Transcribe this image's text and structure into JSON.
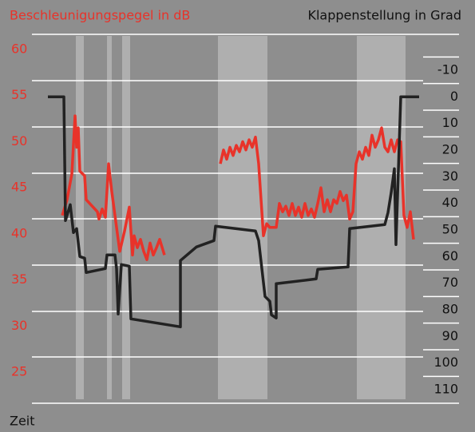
{
  "chart_data": {
    "type": "line",
    "title": "Beschleunigungspegel in dB",
    "y2_title": "Klappenstellung in Grad",
    "x_title": "Zeit",
    "xlim": [
      0,
      490
    ],
    "ylim": [
      25,
      60
    ],
    "yticks": [
      25,
      30,
      35,
      40,
      45,
      50,
      55,
      60
    ],
    "y2lim": [
      -10,
      110
    ],
    "y2ticks": [
      -10,
      0,
      10,
      20,
      30,
      40,
      50,
      60,
      70,
      80,
      90,
      100,
      110
    ],
    "series": [
      {
        "color": "#e8332a",
        "axis": "y",
        "x": [
          38,
          44,
          50,
          54,
          56,
          58,
          60,
          66,
          68,
          82,
          84,
          88,
          92,
          96,
          100,
          106,
          110,
          116,
          122,
          126,
          128,
          132,
          136,
          140,
          144,
          148,
          152,
          156,
          160,
          166,
          200,
          236,
          240,
          244,
          248,
          252,
          256,
          260,
          264,
          268,
          272,
          276,
          280,
          284,
          290,
          294,
          298,
          306,
          310,
          314,
          318,
          322,
          326,
          330,
          334,
          338,
          342,
          346,
          350,
          354,
          358,
          362,
          366,
          370,
          374,
          378,
          382,
          386,
          390,
          394,
          398,
          402,
          406,
          410,
          414,
          418,
          422,
          426,
          430,
          434,
          438,
          442,
          446,
          450,
          454,
          458,
          462,
          466,
          470,
          474,
          478
        ],
        "values": [
          42.0,
          43.7,
          46.5,
          52.8,
          49.4,
          51.5,
          46.8,
          46.3,
          43.7,
          42.4,
          41.6,
          42.7,
          41.8,
          47.6,
          44.6,
          40.7,
          38.1,
          40.3,
          42.9,
          37.7,
          39.8,
          38.5,
          39.4,
          38.1,
          37.2,
          39.0,
          37.7,
          38.5,
          39.4,
          37.7,
          null,
          47.6,
          49.1,
          48.1,
          49.4,
          48.5,
          49.6,
          48.9,
          50.0,
          49.1,
          50.2,
          49.4,
          50.5,
          47.6,
          39.8,
          41.1,
          40.7,
          40.7,
          43.3,
          42.4,
          43.0,
          42.0,
          43.3,
          42.0,
          42.9,
          41.8,
          43.3,
          42.0,
          42.7,
          41.8,
          43.3,
          45.0,
          42.4,
          43.7,
          42.4,
          43.7,
          43.3,
          44.6,
          43.6,
          44.2,
          41.6,
          42.4,
          47.6,
          48.9,
          48.1,
          49.4,
          48.5,
          50.7,
          49.4,
          50.2,
          51.5,
          49.4,
          48.9,
          50.2,
          48.9,
          50.2,
          50.0,
          42.0,
          40.7,
          42.4,
          39.4
        ]
      },
      {
        "color": "#222222",
        "axis": "y2",
        "x": [
          20,
          40,
          42,
          48,
          52,
          56,
          60,
          66,
          68,
          92,
          94,
          104,
          106,
          108,
          112,
          122,
          124,
          186,
          186,
          206,
          228,
          230,
          280,
          284,
          292,
          298,
          300,
          306,
          306,
          356,
          358,
          396,
          398,
          442,
          446,
          450,
          454,
          456,
          462,
          485
        ],
        "values": [
          0,
          0,
          46.5,
          40.5,
          51,
          49.5,
          60,
          60.6,
          66,
          64.5,
          59.4,
          59.4,
          64.5,
          81.6,
          63,
          63.6,
          83.4,
          86.4,
          61.5,
          56.4,
          54,
          48.6,
          50.4,
          54,
          75,
          76.8,
          81.9,
          83.1,
          70.2,
          68.4,
          64.8,
          63.9,
          49.5,
          48,
          43.5,
          36,
          27,
          55.5,
          0,
          0
        ]
      }
    ]
  }
}
